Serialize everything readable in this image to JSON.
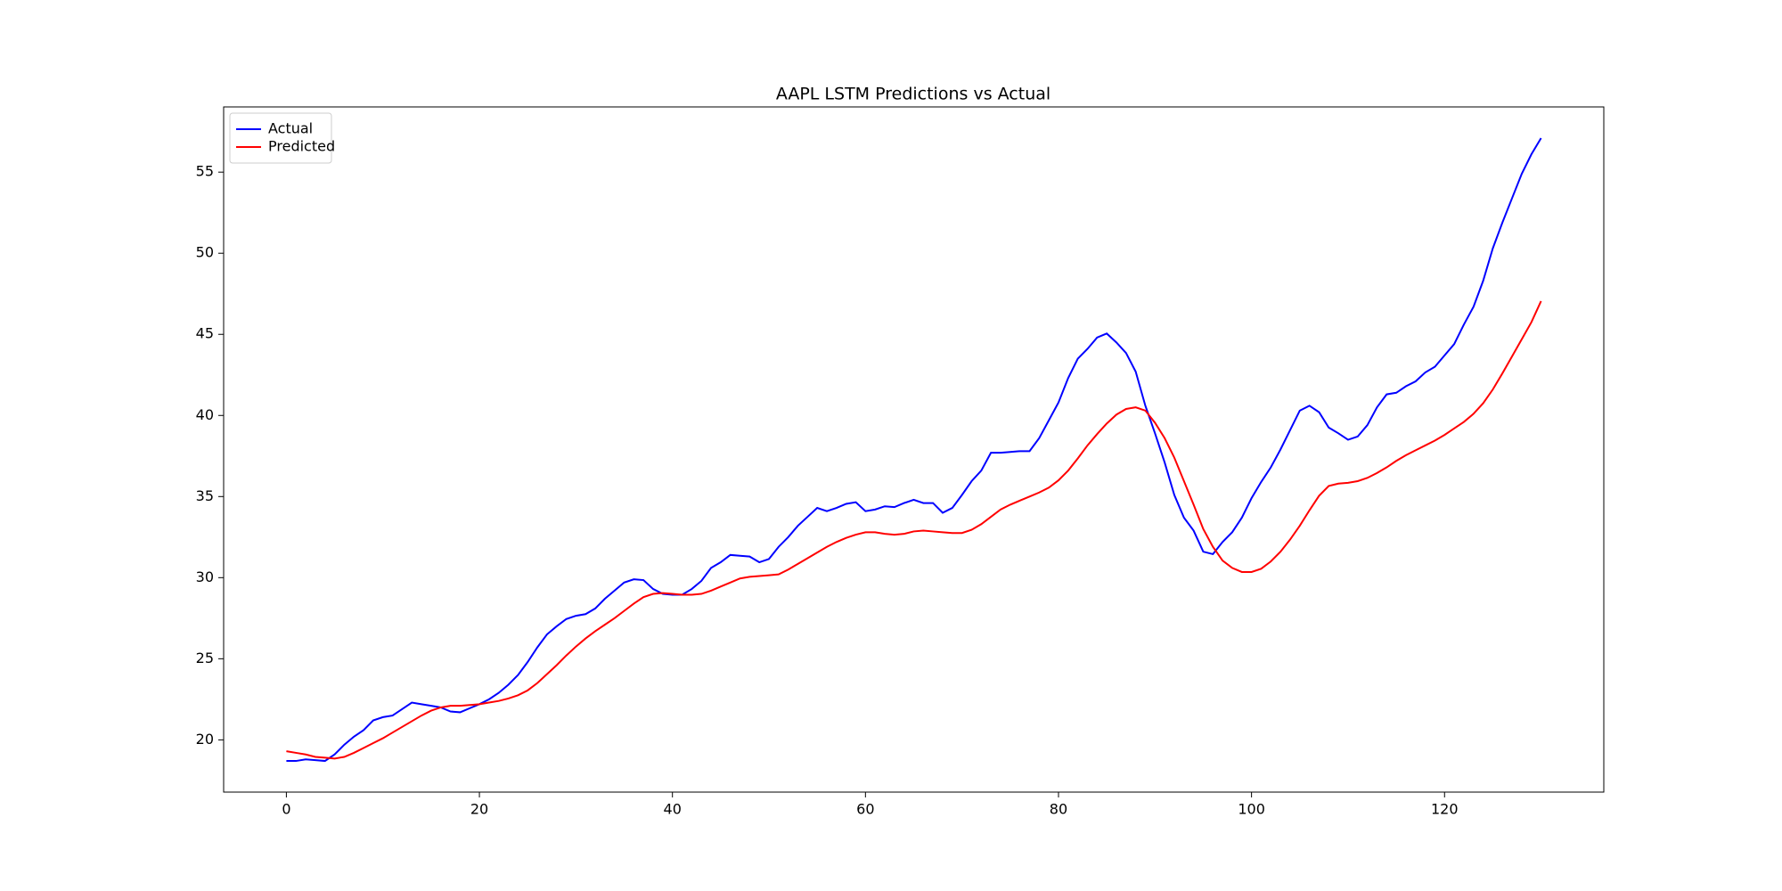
{
  "chart_data": {
    "type": "line",
    "title": "AAPL LSTM Predictions vs Actual",
    "x": [
      0,
      1,
      2,
      3,
      4,
      5,
      6,
      7,
      8,
      9,
      10,
      11,
      12,
      13,
      14,
      15,
      16,
      17,
      18,
      19,
      20,
      21,
      22,
      23,
      24,
      25,
      26,
      27,
      28,
      29,
      30,
      31,
      32,
      33,
      34,
      35,
      36,
      37,
      38,
      39,
      40,
      41,
      42,
      43,
      44,
      45,
      46,
      47,
      48,
      49,
      50,
      51,
      52,
      53,
      54,
      55,
      56,
      57,
      58,
      59,
      60,
      61,
      62,
      63,
      64,
      65,
      66,
      67,
      68,
      69,
      70,
      71,
      72,
      73,
      74,
      75,
      76,
      77,
      78,
      79,
      80,
      81,
      82,
      83,
      84,
      85,
      86,
      87,
      88,
      89,
      90,
      91,
      92,
      93,
      94,
      95,
      96,
      97,
      98,
      99,
      100,
      101,
      102,
      103,
      104,
      105,
      106,
      107,
      108,
      109,
      110,
      111,
      112,
      113,
      114,
      115,
      116,
      117,
      118,
      119,
      120,
      121,
      122,
      123,
      124,
      125,
      126,
      127,
      128,
      129,
      130
    ],
    "series": [
      {
        "name": "Actual",
        "color": "#0000ff",
        "values": [
          18.7,
          18.7,
          18.8,
          18.75,
          18.7,
          19.1,
          19.7,
          20.2,
          20.6,
          21.2,
          21.4,
          21.5,
          21.9,
          22.3,
          22.2,
          22.1,
          22.0,
          21.75,
          21.7,
          21.95,
          22.2,
          22.5,
          22.9,
          23.4,
          24.0,
          24.8,
          25.7,
          26.5,
          27.0,
          27.45,
          27.65,
          27.75,
          28.1,
          28.7,
          29.2,
          29.7,
          29.9,
          29.85,
          29.3,
          29.0,
          28.95,
          28.95,
          29.3,
          29.8,
          30.6,
          30.95,
          31.4,
          31.35,
          31.3,
          30.95,
          31.15,
          31.9,
          32.5,
          33.2,
          33.75,
          34.3,
          34.1,
          34.3,
          34.55,
          34.65,
          34.1,
          34.2,
          34.4,
          34.35,
          34.6,
          34.8,
          34.6,
          34.6,
          34.0,
          34.3,
          35.1,
          35.95,
          36.6,
          37.7,
          37.7,
          37.75,
          37.8,
          37.8,
          38.6,
          39.7,
          40.8,
          42.3,
          43.5,
          44.1,
          44.8,
          45.05,
          44.5,
          43.85,
          42.7,
          40.6,
          38.9,
          37.1,
          35.1,
          33.7,
          32.9,
          31.6,
          31.45,
          32.2,
          32.8,
          33.7,
          34.9,
          35.9,
          36.8,
          37.9,
          39.1,
          40.3,
          40.6,
          40.2,
          39.25,
          38.9,
          38.5,
          38.7,
          39.4,
          40.5,
          41.3,
          41.4,
          41.8,
          42.1,
          42.65,
          43.0,
          43.7,
          44.4,
          45.6,
          46.7,
          48.3,
          50.3,
          51.9,
          53.4,
          54.9,
          56.1,
          57.1
        ]
      },
      {
        "name": "Predicted",
        "color": "#ff0000",
        "values": [
          19.3,
          19.2,
          19.1,
          18.95,
          18.9,
          18.85,
          18.95,
          19.2,
          19.5,
          19.8,
          20.1,
          20.45,
          20.8,
          21.15,
          21.5,
          21.8,
          22.0,
          22.1,
          22.1,
          22.15,
          22.2,
          22.3,
          22.4,
          22.55,
          22.75,
          23.05,
          23.5,
          24.05,
          24.6,
          25.2,
          25.75,
          26.25,
          26.7,
          27.1,
          27.5,
          27.95,
          28.4,
          28.8,
          29.0,
          29.05,
          29.0,
          28.95,
          28.95,
          29.0,
          29.2,
          29.45,
          29.7,
          29.95,
          30.05,
          30.1,
          30.15,
          30.2,
          30.5,
          30.85,
          31.2,
          31.55,
          31.9,
          32.2,
          32.45,
          32.65,
          32.8,
          32.8,
          32.7,
          32.65,
          32.7,
          32.85,
          32.9,
          32.85,
          32.8,
          32.75,
          32.75,
          32.95,
          33.3,
          33.75,
          34.2,
          34.5,
          34.75,
          35.0,
          35.25,
          35.55,
          36.0,
          36.6,
          37.35,
          38.15,
          38.85,
          39.5,
          40.05,
          40.4,
          40.5,
          40.3,
          39.55,
          38.6,
          37.4,
          35.95,
          34.5,
          33.0,
          31.9,
          31.05,
          30.6,
          30.35,
          30.35,
          30.55,
          31.0,
          31.6,
          32.35,
          33.2,
          34.15,
          35.05,
          35.65,
          35.8,
          35.85,
          35.95,
          36.15,
          36.45,
          36.8,
          37.2,
          37.55,
          37.85,
          38.15,
          38.45,
          38.8,
          39.2,
          39.6,
          40.1,
          40.75,
          41.6,
          42.6,
          43.65,
          44.7,
          45.75,
          47.05
        ]
      }
    ],
    "xlim": [
      -6.5,
      136.5
    ],
    "xticks": [
      0,
      20,
      40,
      60,
      80,
      100,
      120
    ],
    "ylim": [
      16.78,
      59.02
    ],
    "yticks": [
      20,
      25,
      30,
      35,
      40,
      45,
      50,
      55
    ],
    "grid": false,
    "legend": "upper left"
  }
}
